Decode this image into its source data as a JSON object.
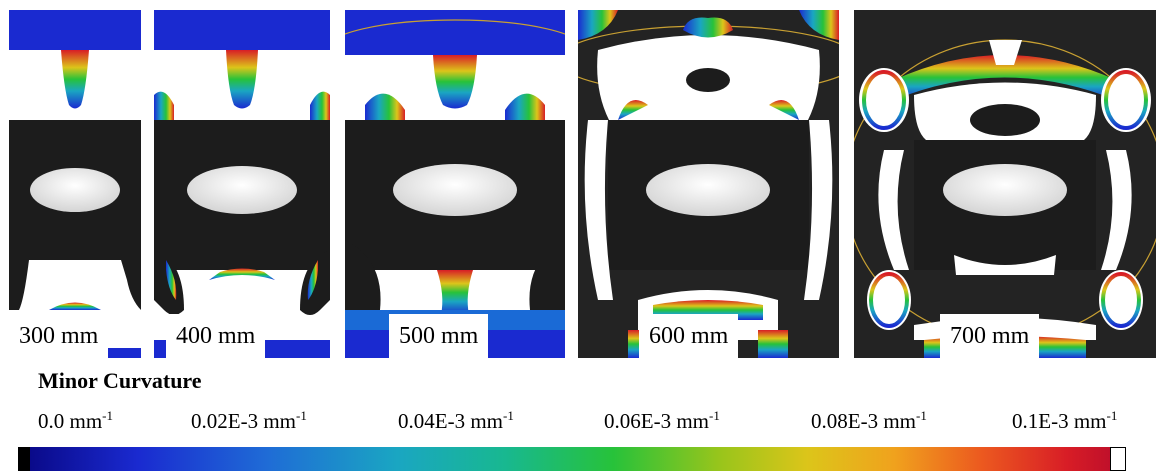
{
  "panels": [
    {
      "label": "300 mm"
    },
    {
      "label": "400 mm"
    },
    {
      "label": "500 mm"
    },
    {
      "label": "600 mm"
    },
    {
      "label": "700 mm"
    }
  ],
  "legend": {
    "title": "Minor Curvature",
    "ticks": [
      {
        "value": "0.0 mm",
        "exp": "-1"
      },
      {
        "value": "0.02E-3 mm",
        "exp": "-1"
      },
      {
        "value": "0.04E-3 mm",
        "exp": "-1"
      },
      {
        "value": "0.06E-3 mm",
        "exp": "-1"
      },
      {
        "value": "0.08E-3 mm",
        "exp": "-1"
      },
      {
        "value": "0.1E-3 mm",
        "exp": "-1"
      }
    ]
  },
  "colors": {
    "background": "#ffffff",
    "panel_dark": "#232323",
    "blob_white": "#ffffff",
    "colormap": [
      "#0a0a8a",
      "#1a2ad0",
      "#1f6cd6",
      "#1aa6c2",
      "#18b890",
      "#27c23a",
      "#9ac51b",
      "#dcc51a",
      "#f0a21d",
      "#ec5a1f",
      "#d81d26"
    ],
    "outline": "#c8a032"
  }
}
